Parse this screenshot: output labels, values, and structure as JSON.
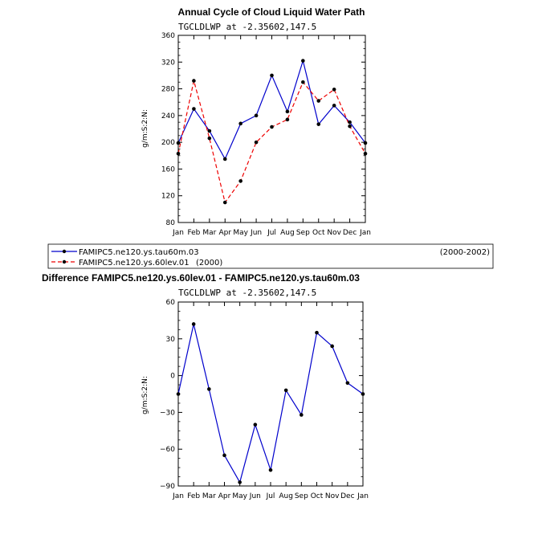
{
  "chart_data": [
    {
      "type": "line",
      "title": "Annual Cycle of Cloud Liquid Water Path",
      "subtitle": "TGCLDLWP at -2.35602,147.5",
      "ylabel": "g/m:S:2:N:",
      "xlabel": "",
      "categories": [
        "Jan",
        "Feb",
        "Mar",
        "Apr",
        "May",
        "Jun",
        "Jul",
        "Aug",
        "Sep",
        "Oct",
        "Nov",
        "Dec",
        "Jan"
      ],
      "ylim": [
        80,
        360
      ],
      "yticks": [
        80,
        120,
        160,
        200,
        240,
        280,
        320,
        360
      ],
      "series": [
        {
          "name": "FAMIPC5.ne120.ys.tau60m.03",
          "period": "(2000-2002)",
          "color": "#0000cc",
          "dash": "solid",
          "values": [
            199,
            250,
            217,
            175,
            228,
            240,
            300,
            246,
            322,
            227,
            255,
            230,
            199
          ]
        },
        {
          "name": "FAMIPC5.ne120.ys.60lev.01",
          "period": "(2000)",
          "color": "#ee0000",
          "dash": "dashed",
          "values": [
            183,
            292,
            206,
            110,
            142,
            200,
            223,
            234,
            290,
            262,
            279,
            224,
            183
          ]
        }
      ],
      "legend": "below"
    },
    {
      "type": "line",
      "title": "Difference FAMIPC5.ne120.ys.60lev.01 - FAMIPC5.ne120.ys.tau60m.03",
      "subtitle": "TGCLDLWP at -2.35602,147.5",
      "ylabel": "g/m:S:2:N:",
      "xlabel": "",
      "categories": [
        "Jan",
        "Feb",
        "Mar",
        "Apr",
        "May",
        "Jun",
        "Jul",
        "Aug",
        "Sep",
        "Oct",
        "Nov",
        "Dec",
        "Jan"
      ],
      "ylim": [
        -90,
        60
      ],
      "yticks": [
        -90,
        -60,
        -30,
        0,
        30,
        60
      ],
      "series": [
        {
          "name": "Difference",
          "color": "#0000cc",
          "dash": "solid",
          "values": [
            -15,
            42,
            -11,
            -65,
            -87,
            -40,
            -77,
            -12,
            -32,
            35,
            24,
            -6,
            -15
          ]
        }
      ]
    }
  ]
}
